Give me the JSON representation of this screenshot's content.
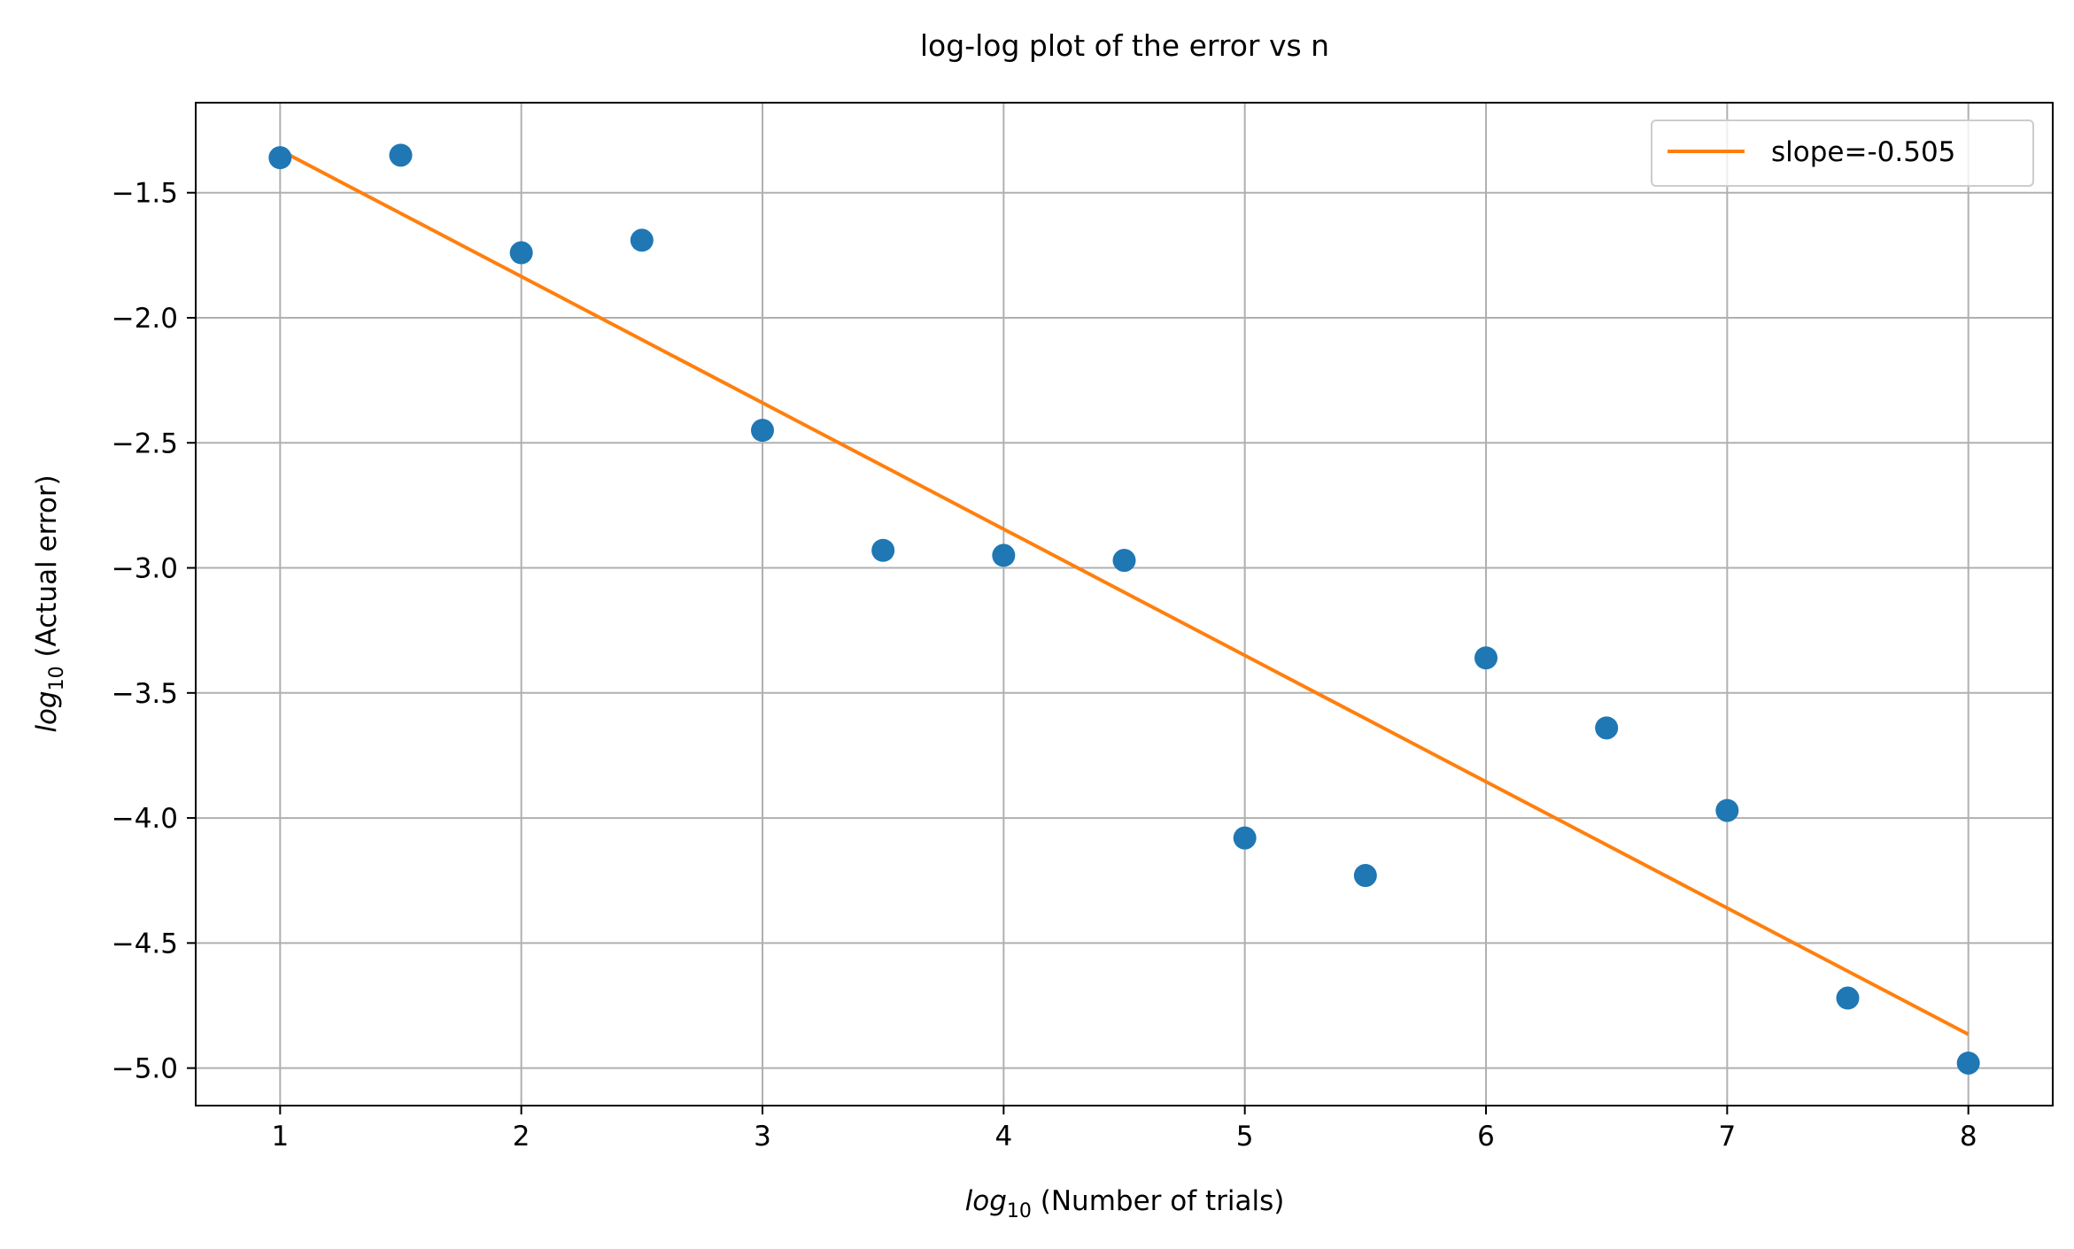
{
  "chart_data": {
    "type": "scatter",
    "title": "log-log plot of the error vs n",
    "xlabel": {
      "prefix": "log",
      "subscript": "10",
      "text": " (Number of trials)"
    },
    "ylabel": {
      "prefix": "log",
      "subscript": "10",
      "text": " (Actual error)"
    },
    "xlim": [
      0.65,
      8.35
    ],
    "ylim": [
      -5.15,
      -1.14
    ],
    "xticks": [
      1,
      2,
      3,
      4,
      5,
      6,
      7,
      8
    ],
    "xtick_labels": [
      "1",
      "2",
      "3",
      "4",
      "5",
      "6",
      "7",
      "8"
    ],
    "yticks": [
      -1.5,
      -2.0,
      -2.5,
      -3.0,
      -3.5,
      -4.0,
      -4.5,
      -5.0
    ],
    "ytick_labels": [
      "−1.5",
      "−2.0",
      "−2.5",
      "−3.0",
      "−3.5",
      "−4.0",
      "−4.5",
      "−5.0"
    ],
    "grid": true,
    "legend_position": "top-right",
    "series": [
      {
        "kind": "scatter",
        "color": "#1f77b4",
        "points": [
          {
            "x": 1.0,
            "y": -1.36
          },
          {
            "x": 1.5,
            "y": -1.35
          },
          {
            "x": 2.0,
            "y": -1.74
          },
          {
            "x": 2.5,
            "y": -1.69
          },
          {
            "x": 3.0,
            "y": -2.45
          },
          {
            "x": 3.5,
            "y": -2.93
          },
          {
            "x": 4.0,
            "y": -2.95
          },
          {
            "x": 4.5,
            "y": -2.97
          },
          {
            "x": 5.0,
            "y": -4.08
          },
          {
            "x": 5.5,
            "y": -4.23
          },
          {
            "x": 6.0,
            "y": -3.36
          },
          {
            "x": 6.5,
            "y": -3.64
          },
          {
            "x": 7.0,
            "y": -3.97
          },
          {
            "x": 7.5,
            "y": -4.72
          },
          {
            "x": 8.0,
            "y": -4.98
          }
        ]
      },
      {
        "kind": "line",
        "name": "slope=-0.505",
        "color": "#ff7f0e",
        "points": [
          {
            "x": 1.0,
            "y": -1.33
          },
          {
            "x": 8.0,
            "y": -4.865
          }
        ]
      }
    ]
  }
}
